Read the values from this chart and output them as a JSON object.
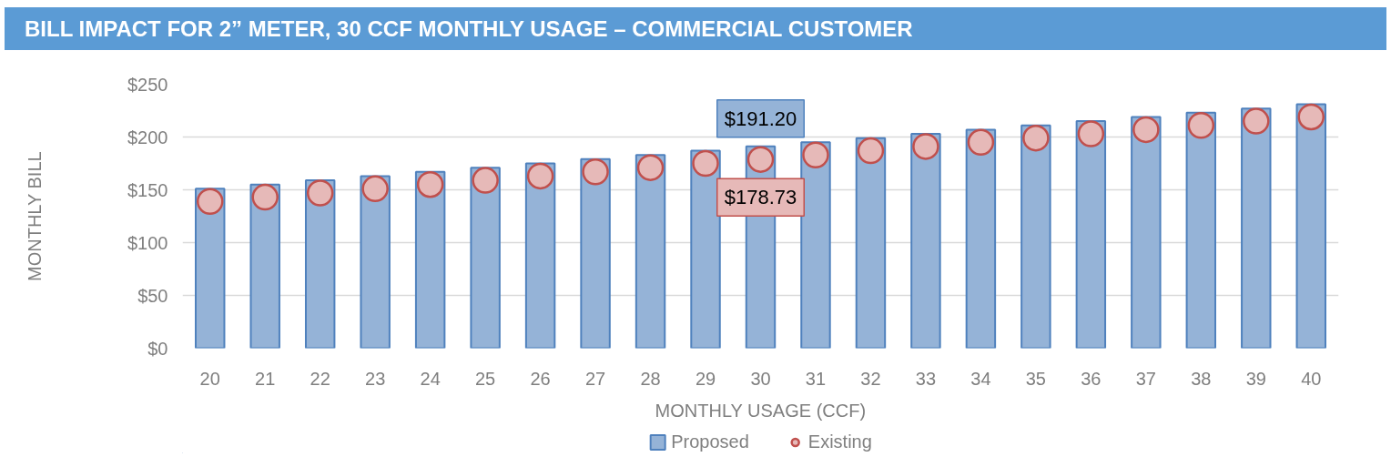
{
  "chart_data": {
    "type": "bar",
    "title": "BILL IMPACT FOR 2” METER, 30 CCF MONTHLY USAGE – COMMERCIAL CUSTOMER",
    "xlabel": "MONTHLY USAGE (CCF)",
    "ylabel": "MONTHLY BILL",
    "categories": [
      "20",
      "21",
      "22",
      "23",
      "24",
      "25",
      "26",
      "27",
      "28",
      "29",
      "30",
      "31",
      "32",
      "33",
      "34",
      "35",
      "36",
      "37",
      "38",
      "39",
      "40"
    ],
    "series": [
      {
        "name": "Proposed",
        "color": "#95b3d7",
        "values": [
          151,
          155,
          159,
          163,
          167,
          171,
          175,
          179,
          183,
          187,
          191.2,
          195,
          199,
          203,
          207,
          211,
          215,
          219,
          223,
          227,
          231
        ],
        "value_labels": [
          null,
          null,
          null,
          null,
          null,
          null,
          null,
          null,
          null,
          null,
          "$191.20",
          null,
          null,
          null,
          null,
          null,
          null,
          null,
          null,
          null,
          null
        ]
      },
      {
        "name": "Existing",
        "type": "scatter",
        "color": "#e6b9b8",
        "values": [
          139,
          143,
          147,
          151,
          155,
          159,
          163,
          167,
          171,
          175,
          178.73,
          183,
          187,
          191,
          195,
          199,
          203,
          207,
          211,
          215,
          219
        ],
        "value_labels": [
          null,
          null,
          null,
          null,
          null,
          null,
          null,
          null,
          null,
          null,
          "$178.73",
          null,
          null,
          null,
          null,
          null,
          null,
          null,
          null,
          null,
          null
        ]
      }
    ],
    "ylim": [
      0,
      250
    ],
    "yticks": [
      {
        "value": 0,
        "label": "$0"
      },
      {
        "value": 50,
        "label": "$50"
      },
      {
        "value": 100,
        "label": "$100"
      },
      {
        "value": 150,
        "label": "$150"
      },
      {
        "value": 200,
        "label": "$200"
      },
      {
        "value": 250,
        "label": "$250"
      }
    ],
    "grid": "y",
    "legend": "bottom",
    "marker": "circle"
  }
}
